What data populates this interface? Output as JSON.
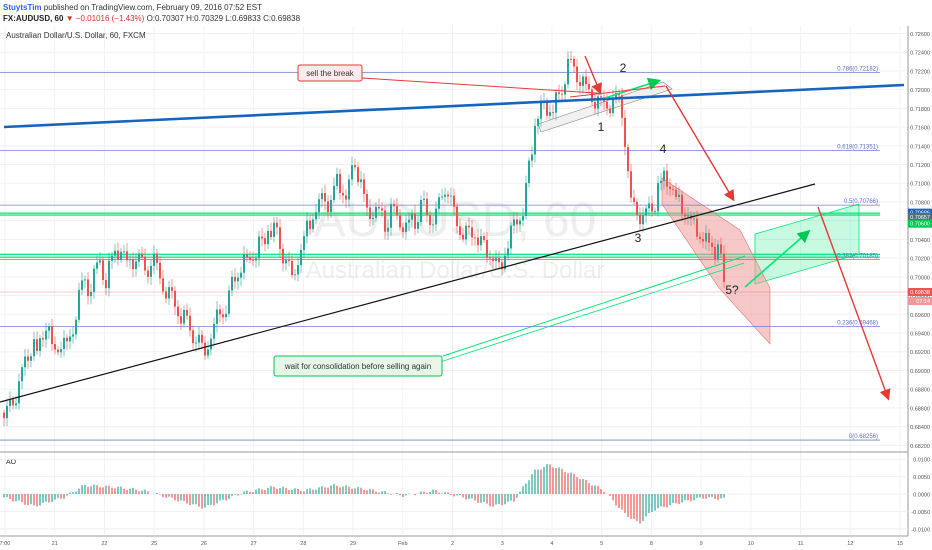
{
  "header": {
    "author": "StuytsTim",
    "published": "published on TradingView.com, February 09, 2016 07:52 EST",
    "symbol": "FX:AUDUSD, 60",
    "change": "▼ −0.01016 (−1.43%)",
    "ohlc": "O:0.70307 H:0.70329 L:0.69833 C:0.69838"
  },
  "chart_title": "Australian Dollar/U.S. Dollar, 60, FXCM",
  "watermark": {
    "symbol": "AUDUSD, 60",
    "name": "Australian Dollar/U.S. Dollar"
  },
  "colors": {
    "up": "#26a69a",
    "down": "#ef5350",
    "blue_trend": "#1565c0",
    "green_zone": "#00e676",
    "red_arrow": "#e53935",
    "fib_line": "#5c6bc0"
  },
  "chart_data": {
    "type": "candlestick",
    "instrument": "AUDUSD",
    "timeframe": "60",
    "x_ticks": [
      "7:00",
      "21",
      "22",
      "25",
      "26",
      "27",
      "28",
      "29",
      "Feb",
      "2",
      "3",
      "4",
      "5",
      "8",
      "9",
      "10",
      "11",
      "12",
      "15"
    ],
    "y_ticks": [
      "0.72600",
      "0.72400",
      "0.72200",
      "0.72000",
      "0.71800",
      "0.71600",
      "0.71400",
      "0.71200",
      "0.71000",
      "0.70800",
      "0.70600",
      "0.70400",
      "0.70200",
      "0.70000",
      "0.69800",
      "0.69600",
      "0.69400",
      "0.69200",
      "0.69000",
      "0.68800",
      "0.68600",
      "0.68400",
      "0.68200"
    ],
    "ylim": [
      0.6815,
      0.7268
    ],
    "last_price": "0.69838",
    "last_price_time": "07:14",
    "price_tags": [
      "0.70686",
      "0.70657",
      "0.70600"
    ],
    "close_path": [
      [
        0,
        0.6855
      ],
      [
        14,
        0.6885
      ],
      [
        26,
        0.6935
      ],
      [
        34,
        0.692
      ],
      [
        42,
        0.6955
      ],
      [
        50,
        0.6925
      ],
      [
        58,
        0.694
      ],
      [
        66,
        0.6935
      ],
      [
        72,
        0.697
      ],
      [
        78,
        0.7
      ],
      [
        86,
        0.6995
      ],
      [
        94,
        0.7015
      ],
      [
        102,
        0.7005
      ],
      [
        110,
        0.7025
      ],
      [
        118,
        0.7035
      ],
      [
        124,
        0.702
      ],
      [
        132,
        0.7025
      ],
      [
        140,
        0.7015
      ],
      [
        150,
        0.702
      ],
      [
        158,
        0.7
      ],
      [
        168,
        0.6985
      ],
      [
        176,
        0.6965
      ],
      [
        186,
        0.695
      ],
      [
        196,
        0.6935
      ],
      [
        204,
        0.693
      ],
      [
        212,
        0.696
      ],
      [
        222,
        0.6975
      ],
      [
        232,
        0.701
      ],
      [
        242,
        0.7025
      ],
      [
        252,
        0.703
      ],
      [
        262,
        0.7055
      ],
      [
        272,
        0.706
      ],
      [
        280,
        0.7025
      ],
      [
        288,
        0.7005
      ],
      [
        296,
        0.703
      ],
      [
        304,
        0.7065
      ],
      [
        312,
        0.707
      ],
      [
        320,
        0.709
      ],
      [
        326,
        0.7075
      ],
      [
        334,
        0.711
      ],
      [
        342,
        0.7085
      ],
      [
        350,
        0.7135
      ],
      [
        356,
        0.7105
      ],
      [
        364,
        0.7075
      ],
      [
        372,
        0.707
      ],
      [
        380,
        0.7065
      ],
      [
        390,
        0.7075
      ],
      [
        400,
        0.7055
      ],
      [
        410,
        0.7065
      ],
      [
        420,
        0.7085
      ],
      [
        428,
        0.706
      ],
      [
        436,
        0.7095
      ],
      [
        444,
        0.7095
      ],
      [
        452,
        0.7065
      ],
      [
        460,
        0.7055
      ],
      [
        468,
        0.7055
      ],
      [
        478,
        0.704
      ],
      [
        488,
        0.7025
      ],
      [
        496,
        0.7015
      ],
      [
        504,
        0.7045
      ],
      [
        512,
        0.706
      ],
      [
        520,
        0.7085
      ],
      [
        526,
        0.7135
      ],
      [
        532,
        0.7175
      ],
      [
        540,
        0.719
      ],
      [
        548,
        0.719
      ],
      [
        556,
        0.7195
      ],
      [
        562,
        0.7225
      ],
      [
        568,
        0.7235
      ],
      [
        574,
        0.722
      ],
      [
        580,
        0.721
      ],
      [
        586,
        0.72
      ],
      [
        592,
        0.719
      ],
      [
        600,
        0.7185
      ],
      [
        608,
        0.719
      ],
      [
        616,
        0.7195
      ],
      [
        620,
        0.717
      ],
      [
        624,
        0.7115
      ],
      [
        628,
        0.708
      ],
      [
        632,
        0.7075
      ],
      [
        638,
        0.706
      ],
      [
        644,
        0.7075
      ],
      [
        650,
        0.7085
      ],
      [
        656,
        0.71
      ],
      [
        662,
        0.7115
      ],
      [
        668,
        0.71
      ],
      [
        674,
        0.7085
      ],
      [
        680,
        0.708
      ],
      [
        686,
        0.7065
      ],
      [
        692,
        0.706
      ],
      [
        698,
        0.704
      ],
      [
        704,
        0.7045
      ],
      [
        710,
        0.7035
      ],
      [
        716,
        0.704
      ],
      [
        722,
        0.6984
      ]
    ],
    "fib_levels": [
      {
        "label": "0.786(0.72182)",
        "value": 0.72182
      },
      {
        "label": "0.618(0.71351)",
        "value": 0.71351
      },
      {
        "label": "0.5(0.70766)",
        "value": 0.70766
      },
      {
        "label": "0.382(0.70185)",
        "value": 0.70185
      },
      {
        "label": "0.236(0.69468)",
        "value": 0.69468
      },
      {
        "label": "0(0.68256)",
        "value": 0.68256
      }
    ],
    "annotations": {
      "sell_label": "sell the break",
      "wait_label": "wait for consolidation before selling again",
      "wave_labels": [
        "1",
        "2",
        "3",
        "4",
        "5?"
      ]
    },
    "oscillator": {
      "name": "AO",
      "y_ticks": [
        "0.0100",
        "0.0050",
        "0.0000",
        "-0.0050",
        "-0.0100"
      ],
      "ylim": [
        -0.0115,
        0.0115
      ],
      "profile": [
        [
          0,
          -0.001
        ],
        [
          30,
          -0.0035
        ],
        [
          60,
          -0.001
        ],
        [
          80,
          0.0025
        ],
        [
          110,
          0.002
        ],
        [
          140,
          0.001
        ],
        [
          170,
          -0.0015
        ],
        [
          200,
          -0.004
        ],
        [
          240,
          0.0005
        ],
        [
          270,
          0.002
        ],
        [
          300,
          0.001
        ],
        [
          330,
          0.0025
        ],
        [
          360,
          0.0015
        ],
        [
          400,
          -0.0005
        ],
        [
          430,
          0.001
        ],
        [
          460,
          -0.001
        ],
        [
          490,
          -0.0035
        ],
        [
          510,
          -0.002
        ],
        [
          530,
          0.0065
        ],
        [
          545,
          0.0085
        ],
        [
          570,
          0.0055
        ],
        [
          600,
          0.001
        ],
        [
          620,
          -0.0055
        ],
        [
          635,
          -0.0085
        ],
        [
          650,
          -0.0045
        ],
        [
          675,
          -0.0025
        ],
        [
          700,
          -0.001
        ],
        [
          722,
          -0.0015
        ]
      ]
    }
  }
}
